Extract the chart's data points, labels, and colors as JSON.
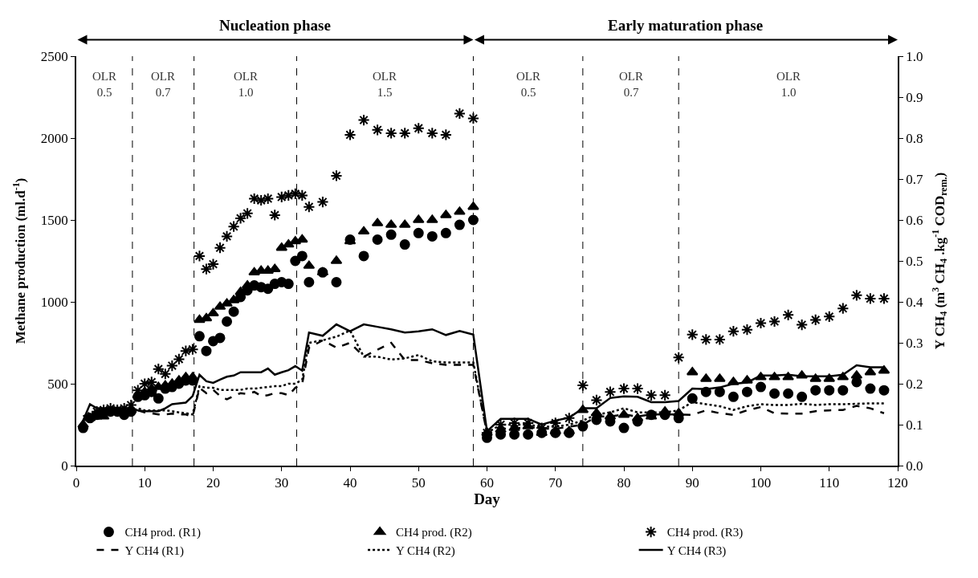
{
  "chart_data": {
    "type": "scatter",
    "xlabel": "Day",
    "ylabel": "Methane production (ml.d$^{-1}$)",
    "y2label": "Y CH$_{4}$ (m$^{3}$ CH$_{4}$ .kg$^{-1}$ COD$_{rem.}$)",
    "xlim": [
      0,
      120
    ],
    "xticks": [
      0,
      10,
      20,
      30,
      40,
      50,
      60,
      70,
      80,
      90,
      100,
      110,
      120
    ],
    "ylim": [
      0,
      2500
    ],
    "yticks": [
      0,
      500,
      1000,
      1500,
      2000,
      2500
    ],
    "y2lim": [
      0,
      1
    ],
    "y2ticks": [
      {
        "value": 0,
        "label": "0.0"
      },
      0.1,
      0.2,
      0.3,
      0.4,
      0.5,
      0.6,
      0.7,
      0.8,
      0.9,
      {
        "value": 1,
        "label": "1.0"
      }
    ],
    "legend": "bottom",
    "series": [
      {
        "name": "CH4 prod. (R1)",
        "marker": "circle",
        "color": "#000000",
        "x": [
          1,
          2,
          3,
          4,
          5,
          6,
          7,
          8,
          9,
          10,
          11,
          12,
          13,
          14,
          15,
          16,
          17,
          18,
          19,
          20,
          21,
          22,
          23,
          24,
          25,
          26,
          27,
          28,
          29,
          30,
          31,
          32,
          33,
          34,
          36,
          38,
          40,
          42,
          44,
          46,
          48,
          50,
          52,
          54,
          56,
          58,
          60,
          62,
          64,
          66,
          68,
          70,
          72,
          74,
          76,
          78,
          80,
          82,
          84,
          86,
          88,
          90,
          92,
          94,
          96,
          98,
          100,
          102,
          104,
          106,
          108,
          110,
          112,
          114,
          116,
          118
        ],
        "values": [
          230,
          290,
          310,
          320,
          330,
          330,
          310,
          330,
          420,
          430,
          450,
          410,
          470,
          480,
          500,
          520,
          520,
          790,
          700,
          760,
          780,
          880,
          940,
          1030,
          1070,
          1100,
          1090,
          1080,
          1110,
          1120,
          1110,
          1250,
          1280,
          1120,
          1180,
          1120,
          1380,
          1280,
          1380,
          1410,
          1350,
          1420,
          1400,
          1420,
          1470,
          1500,
          170,
          190,
          190,
          190,
          200,
          200,
          200,
          240,
          280,
          270,
          230,
          270,
          310,
          310,
          290,
          410,
          450,
          450,
          420,
          450,
          480,
          440,
          440,
          420,
          460,
          460,
          460,
          510,
          470,
          460
        ]
      },
      {
        "name": "CH4 prod. (R2)",
        "marker": "triangle",
        "color": "#000000",
        "x": [
          1,
          2,
          3,
          4,
          5,
          6,
          7,
          8,
          9,
          10,
          11,
          12,
          13,
          14,
          15,
          16,
          17,
          18,
          19,
          20,
          21,
          22,
          23,
          24,
          25,
          26,
          27,
          28,
          29,
          30,
          31,
          32,
          33,
          34,
          36,
          38,
          40,
          42,
          44,
          46,
          48,
          50,
          52,
          54,
          56,
          58,
          60,
          62,
          64,
          66,
          68,
          70,
          72,
          74,
          76,
          78,
          80,
          82,
          84,
          86,
          88,
          90,
          92,
          94,
          96,
          98,
          100,
          102,
          104,
          106,
          108,
          110,
          112,
          114,
          116,
          118
        ],
        "values": [
          250,
          290,
          300,
          300,
          null,
          null,
          null,
          340,
          430,
          450,
          470,
          480,
          490,
          500,
          520,
          540,
          540,
          890,
          900,
          930,
          970,
          990,
          1010,
          1060,
          1100,
          1180,
          1190,
          1190,
          1200,
          1330,
          1350,
          1370,
          1380,
          1220,
          1180,
          1250,
          1370,
          1430,
          1480,
          1470,
          1470,
          1500,
          1500,
          1530,
          1550,
          1580,
          200,
          220,
          230,
          240,
          200,
          210,
          210,
          340,
          320,
          300,
          310,
          290,
          300,
          330,
          320,
          570,
          530,
          530,
          510,
          520,
          540,
          540,
          540,
          550,
          530,
          530,
          540,
          550,
          570,
          580
        ]
      },
      {
        "name": "CH4 prod. (R3)",
        "marker": "cross",
        "color": "#000000",
        "x": [
          3,
          4,
          5,
          6,
          7,
          8,
          9,
          10,
          11,
          12,
          13,
          14,
          15,
          16,
          17,
          18,
          19,
          20,
          21,
          22,
          23,
          24,
          25,
          26,
          27,
          28,
          29,
          30,
          31,
          32,
          33,
          34,
          36,
          38,
          40,
          42,
          44,
          46,
          48,
          50,
          52,
          54,
          56,
          58,
          60,
          62,
          64,
          66,
          68,
          70,
          72,
          74,
          76,
          78,
          80,
          82,
          84,
          86,
          88,
          90,
          92,
          94,
          96,
          98,
          100,
          102,
          104,
          106,
          108,
          110,
          112,
          114,
          116,
          118
        ],
        "values": [
          330,
          340,
          350,
          340,
          350,
          370,
          460,
          500,
          510,
          590,
          560,
          610,
          650,
          700,
          710,
          1280,
          1200,
          1230,
          1330,
          1400,
          1460,
          1510,
          1540,
          1630,
          1620,
          1630,
          1530,
          1640,
          1650,
          1660,
          1650,
          1580,
          1610,
          1770,
          2020,
          2110,
          2050,
          2030,
          2030,
          2060,
          2030,
          2020,
          2150,
          2120,
          200,
          250,
          260,
          260,
          230,
          260,
          290,
          490,
          400,
          450,
          470,
          470,
          430,
          430,
          660,
          800,
          770,
          770,
          820,
          830,
          870,
          880,
          920,
          860,
          890,
          910,
          960,
          1040,
          1020,
          1020
        ]
      },
      {
        "name": "Y CH4 (R1)",
        "type": "line",
        "axis": "y2",
        "line_style": "dashed",
        "color": "#000000",
        "x": [
          1,
          2,
          3,
          4,
          5,
          6,
          7,
          8,
          9,
          10,
          11,
          12,
          13,
          14,
          15,
          16,
          17,
          18,
          19,
          20,
          21,
          22,
          23,
          24,
          25,
          26,
          27,
          28,
          29,
          30,
          31,
          32,
          33,
          34,
          36,
          38,
          40,
          42,
          44,
          46,
          48,
          50,
          52,
          54,
          56,
          58,
          60,
          62,
          64,
          66,
          68,
          70,
          72,
          74,
          76,
          78,
          80,
          82,
          84,
          86,
          88,
          90,
          92,
          94,
          96,
          98,
          100,
          102,
          104,
          106,
          108,
          110,
          112,
          114,
          116,
          118
        ],
        "values": [
          0.11,
          0.12,
          0.13,
          0.13,
          0.13,
          0.13,
          0.13,
          0.13,
          0.135,
          0.13,
          0.128,
          0.125,
          0.125,
          0.127,
          0.125,
          0.125,
          0.12,
          0.19,
          0.177,
          0.185,
          0.17,
          0.162,
          0.17,
          0.177,
          0.175,
          0.18,
          0.17,
          0.172,
          0.177,
          0.177,
          0.172,
          0.19,
          0.2,
          0.288,
          0.306,
          0.288,
          0.3,
          0.266,
          0.283,
          0.3,
          0.258,
          0.258,
          0.25,
          0.246,
          0.246,
          0.246,
          0.08,
          0.09,
          0.09,
          0.095,
          0.09,
          0.09,
          0.095,
          0.1,
          0.12,
          0.12,
          0.125,
          0.12,
          0.125,
          0.125,
          0.125,
          0.124,
          0.135,
          0.128,
          0.124,
          0.135,
          0.143,
          0.128,
          0.127,
          0.127,
          0.133,
          0.135,
          0.136,
          0.146,
          0.14,
          0.128
        ]
      },
      {
        "name": "Y CH4 (R2)",
        "type": "line",
        "axis": "y2",
        "line_style": "dotted",
        "color": "#000000",
        "x": [
          1,
          2,
          3,
          4,
          5,
          6,
          7,
          8,
          9,
          10,
          11,
          12,
          13,
          14,
          15,
          16,
          17,
          18,
          19,
          20,
          21,
          22,
          23,
          24,
          25,
          26,
          27,
          28,
          29,
          30,
          31,
          32,
          33,
          34,
          36,
          38,
          40,
          42,
          44,
          46,
          48,
          50,
          52,
          54,
          56,
          58,
          60,
          62,
          64,
          66,
          68,
          70,
          72,
          74,
          76,
          78,
          80,
          82,
          84,
          86,
          88,
          90,
          92,
          94,
          96,
          98,
          100,
          102,
          104,
          106,
          108,
          110,
          112,
          114,
          116,
          118
        ],
        "values": [
          0.12,
          0.13,
          0.13,
          0.13,
          0.13,
          0.13,
          0.13,
          0.13,
          0.14,
          0.135,
          0.135,
          0.135,
          0.135,
          0.133,
          0.13,
          0.128,
          0.125,
          0.194,
          0.19,
          0.19,
          0.185,
          0.185,
          0.185,
          0.185,
          0.188,
          0.188,
          0.19,
          0.192,
          0.194,
          0.194,
          0.2,
          0.2,
          0.21,
          0.3,
          0.306,
          0.315,
          0.33,
          0.266,
          0.266,
          0.259,
          0.262,
          0.27,
          0.255,
          0.252,
          0.252,
          0.252,
          0.08,
          0.1,
          0.1,
          0.1,
          0.095,
          0.095,
          0.1,
          0.11,
          0.125,
          0.13,
          0.14,
          0.13,
          0.13,
          0.13,
          0.135,
          0.155,
          0.15,
          0.145,
          0.136,
          0.145,
          0.15,
          0.148,
          0.148,
          0.151,
          0.148,
          0.15,
          0.15,
          0.151,
          0.152,
          0.152
        ]
      },
      {
        "name": "Y CH4 (R3)",
        "type": "line",
        "axis": "y2",
        "line_style": "solid",
        "color": "#000000",
        "x": [
          1,
          2,
          3,
          4,
          5,
          6,
          7,
          8,
          9,
          10,
          11,
          12,
          13,
          14,
          15,
          16,
          17,
          18,
          19,
          20,
          21,
          22,
          23,
          24,
          25,
          26,
          27,
          28,
          29,
          30,
          31,
          32,
          33,
          34,
          36,
          38,
          40,
          42,
          44,
          46,
          48,
          50,
          52,
          54,
          56,
          58,
          60,
          62,
          64,
          66,
          68,
          70,
          72,
          74,
          76,
          78,
          80,
          82,
          84,
          86,
          88,
          90,
          92,
          94,
          96,
          98,
          100,
          102,
          104,
          106,
          108,
          110,
          112,
          114,
          116,
          118
        ],
        "values": [
          0.11,
          0.15,
          0.14,
          0.14,
          0.14,
          0.14,
          0.14,
          0.14,
          0.135,
          0.133,
          0.133,
          0.133,
          0.14,
          0.15,
          0.152,
          0.154,
          0.17,
          0.222,
          0.206,
          0.202,
          0.21,
          0.217,
          0.22,
          0.228,
          0.228,
          0.228,
          0.228,
          0.237,
          0.222,
          0.228,
          0.233,
          0.243,
          0.232,
          0.325,
          0.317,
          0.345,
          0.328,
          0.345,
          0.339,
          0.333,
          0.325,
          0.328,
          0.333,
          0.319,
          0.329,
          0.32,
          0.084,
          0.114,
          0.114,
          0.114,
          0.1,
          0.11,
          0.117,
          0.14,
          0.14,
          0.165,
          0.169,
          0.168,
          0.155,
          0.155,
          0.158,
          0.188,
          0.187,
          0.191,
          0.2,
          0.203,
          0.22,
          0.22,
          0.222,
          0.218,
          0.218,
          0.218,
          0.222,
          0.245,
          0.24,
          0.24
        ]
      }
    ],
    "ref_lines": [
      {
        "axis": "x",
        "value": 8.2,
        "line_style": "dashed"
      },
      {
        "axis": "x",
        "value": 17.2,
        "line_style": "dashed"
      },
      {
        "axis": "x",
        "value": 32.2,
        "line_style": "dashed"
      },
      {
        "axis": "x",
        "value": 58,
        "line_style": "dashed"
      },
      {
        "axis": "x",
        "value": 74,
        "line_style": "dashed"
      },
      {
        "axis": "x",
        "value": 88,
        "line_style": "dashed"
      }
    ],
    "annotations": [
      "Nucleation phase",
      "Early maturation phase",
      "OLR\n0.5",
      "OLR\n0.7",
      "OLR\n1.0",
      "OLR\n1.5",
      "OLR\n0.5",
      "OLR\n0.7",
      "OLR\n1.0"
    ]
  }
}
